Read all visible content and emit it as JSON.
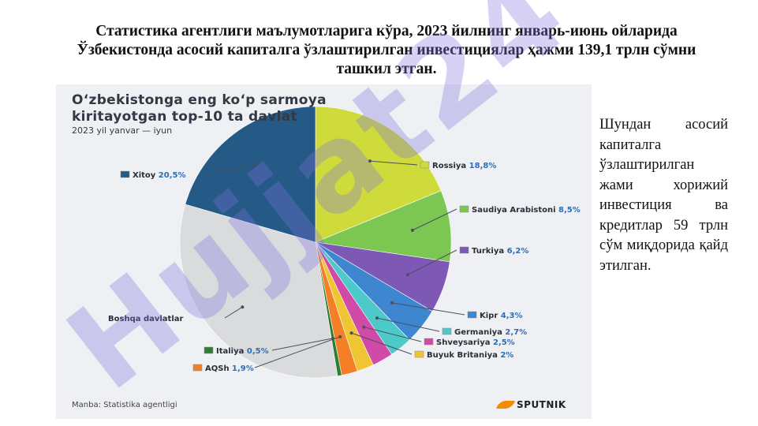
{
  "slide": {
    "title": "Статистика агентлиги маълумотларига кўра, 2023 йилнинг январь-июнь ойларида Ўзбекистонда асосий капиталга ўзлаштирилган инвестициялар ҳажми 139,1 трлн сўмни ташкил этган.",
    "side_text": "Шундан асосий капиталга ўзлаштирилган жами хорижий инвестиция ва кредитлар 59 трлн сўм миқдорида қайд этилган."
  },
  "infographic": {
    "title_line1": "O‘zbekistonga eng ko‘p sarmoya",
    "title_line2": "kiritayotgan top-10 ta davlat",
    "subtitle": "2023 yil yanvar — iyun",
    "source": "Manba: Statistika agentligi",
    "brand": "SPUTNIK"
  },
  "watermark": {
    "text": "Hujjat24",
    "color": "#7f6fe0"
  },
  "chart_data": {
    "type": "pie",
    "title": "O‘zbekistonga eng ko‘p sarmoya kiritayotgan top-10 ta davlat",
    "subtitle": "2023 yil yanvar — iyun",
    "unit": "%",
    "slices": [
      {
        "label": "Rossiya",
        "value": 18.8,
        "display": "18,8%",
        "color": "#cfdb3b"
      },
      {
        "label": "Saudiya Arabistoni",
        "value": 8.5,
        "display": "8,5%",
        "color": "#7cc652"
      },
      {
        "label": "Turkiya",
        "value": 6.2,
        "display": "6,2%",
        "color": "#7d58b4"
      },
      {
        "label": "Kipr",
        "value": 4.3,
        "display": "4,3%",
        "color": "#3f86d1"
      },
      {
        "label": "Germaniya",
        "value": 2.7,
        "display": "2,7%",
        "color": "#4cc9c8"
      },
      {
        "label": "Shveysariya",
        "value": 2.5,
        "display": "2,5%",
        "color": "#d04aa8"
      },
      {
        "label": "Buyuk Britaniya",
        "value": 2,
        "display": "2%",
        "color": "#f0c533"
      },
      {
        "label": "AQSh",
        "value": 1.9,
        "display": "1,9%",
        "color": "#f47f26"
      },
      {
        "label": "Italiya",
        "value": 0.5,
        "display": "0,5%",
        "color": "#2e7d32"
      },
      {
        "label": "Boshqa davlatlar",
        "value": 32.1,
        "display": "",
        "color": "#d9dbdd"
      },
      {
        "label": "Xitoy",
        "value": 20.5,
        "display": "20,5%",
        "color": "#245a85"
      }
    ]
  }
}
